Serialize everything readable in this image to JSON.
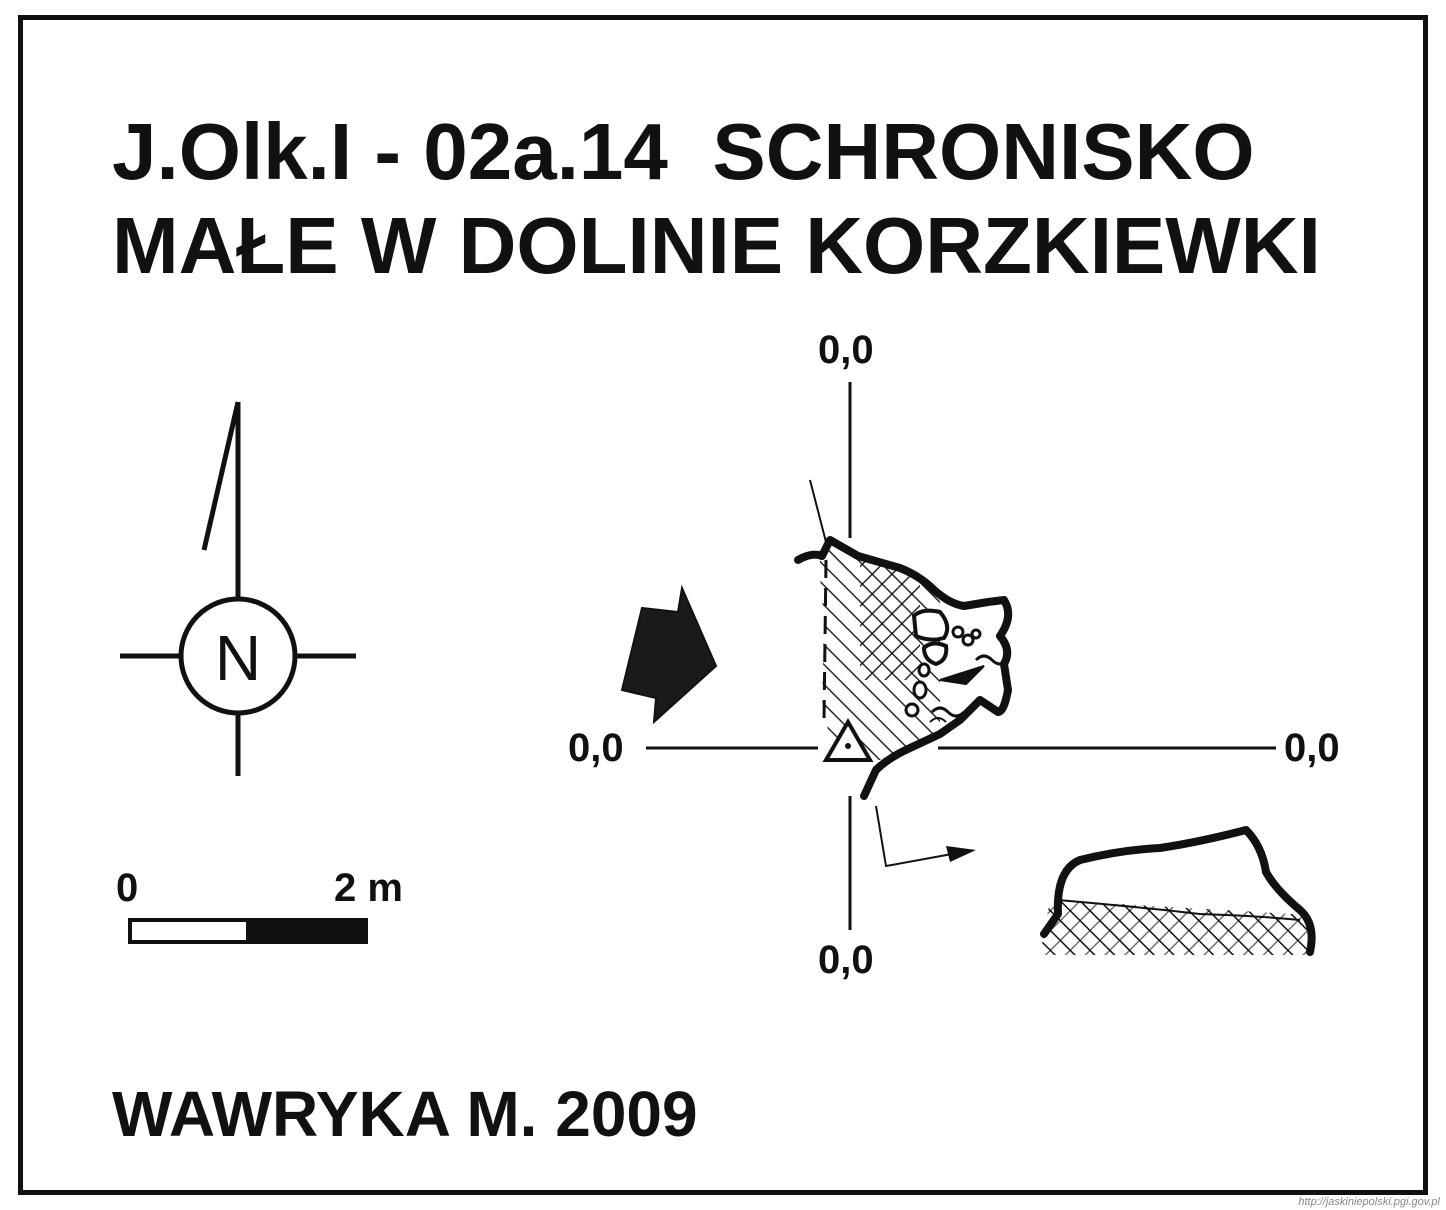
{
  "title": {
    "line1": "J.Olk.I - 02a.14  SCHRONISKO",
    "line2": "MAŁE W DOLINIE KORZKIEWKI"
  },
  "north_arrow": {
    "label": "N",
    "icon": "north-arrow-icon"
  },
  "scale_bar": {
    "start_label": "0",
    "end_label": "2 m"
  },
  "coordinates": {
    "top": "0,0",
    "left": "0,0",
    "right": "0,0",
    "bottom": "0,0"
  },
  "author": "WAWRYKA M. 2009",
  "source": "http://jaskiniepolski.pgi.gov.pl",
  "colors": {
    "ink": "#111111",
    "paper": "#ffffff"
  }
}
